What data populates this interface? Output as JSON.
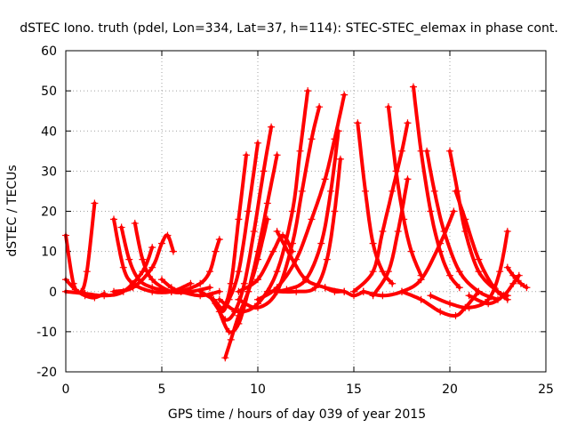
{
  "chart_data": {
    "type": "scatter",
    "title": "dSTEC Iono. truth (pdel, Lon=334, Lat=37, h=114): STEC-STEC_elemax in phase cont.",
    "xlabel": "GPS time / hours of day 039 of year 2015",
    "ylabel": "dSTEC  / TECUs",
    "xlim": [
      0,
      25
    ],
    "ylim": [
      -20,
      60
    ],
    "x_ticks": [
      0,
      5,
      10,
      15,
      20,
      25
    ],
    "y_ticks": [
      -20,
      -10,
      0,
      10,
      20,
      30,
      40,
      50,
      60
    ],
    "grid": true,
    "marker": "+",
    "color": "#ff0000",
    "arcs": [
      {
        "x": [
          0.0,
          0.4,
          0.8,
          1.1,
          1.5
        ],
        "y": [
          14.0,
          2.0,
          0.0,
          5.0,
          22.0
        ]
      },
      {
        "x": [
          0.0,
          0.5,
          1.0,
          1.5,
          2.0
        ],
        "y": [
          3.0,
          0.5,
          -1.0,
          -1.5,
          -0.5
        ]
      },
      {
        "x": [
          0.0,
          1.0,
          2.0,
          3.0,
          4.0,
          4.5
        ],
        "y": [
          0.0,
          -0.5,
          -1.0,
          0.0,
          5.0,
          11.0
        ]
      },
      {
        "x": [
          2.5,
          3.0,
          3.5,
          4.5,
          5.5,
          6.5
        ],
        "y": [
          18.0,
          6.0,
          2.0,
          0.0,
          0.0,
          2.0
        ]
      },
      {
        "x": [
          2.9,
          3.3,
          3.8,
          4.5,
          5.5
        ],
        "y": [
          16.0,
          8.0,
          3.0,
          1.0,
          0.0
        ]
      },
      {
        "x": [
          3.6,
          4.0,
          4.5,
          5.5,
          6.5,
          7.5
        ],
        "y": [
          17.0,
          8.0,
          3.0,
          0.0,
          0.0,
          1.0
        ]
      },
      {
        "x": [
          2.5,
          3.5,
          4.5,
          5.0,
          5.3,
          5.6
        ],
        "y": [
          0.0,
          1.0,
          6.0,
          12.0,
          14.0,
          10.0
        ]
      },
      {
        "x": [
          5.0,
          5.5,
          6.0,
          7.0,
          8.0
        ],
        "y": [
          3.0,
          1.0,
          0.0,
          -1.0,
          0.0
        ]
      },
      {
        "x": [
          6.0,
          7.0,
          7.5,
          7.8,
          8.0
        ],
        "y": [
          0.0,
          2.0,
          5.0,
          10.0,
          13.0
        ]
      },
      {
        "x": [
          7.0,
          7.7,
          8.2,
          8.6,
          9.0,
          9.4
        ],
        "y": [
          0.0,
          -2.0,
          -4.0,
          2.0,
          18.0,
          34.0
        ]
      },
      {
        "x": [
          7.5,
          8.1,
          8.5,
          9.0,
          9.5,
          10.0
        ],
        "y": [
          -1.0,
          -5.0,
          -2.0,
          5.0,
          20.0,
          37.0
        ]
      },
      {
        "x": [
          7.8,
          8.3,
          8.8,
          9.3,
          9.8,
          10.3,
          10.7
        ],
        "y": [
          -3.0,
          -7.0,
          -5.0,
          2.0,
          15.0,
          30.0,
          41.0
        ]
      },
      {
        "x": [
          8.0,
          8.5,
          9.0,
          9.5,
          10.0,
          10.5,
          11.0
        ],
        "y": [
          -5.0,
          -10.0,
          -8.0,
          0.0,
          10.0,
          22.0,
          34.0
        ]
      },
      {
        "x": [
          8.3,
          8.6,
          9.0,
          9.5,
          10.0,
          10.5
        ],
        "y": [
          -16.5,
          -12.0,
          -6.0,
          0.0,
          8.0,
          18.0
        ]
      },
      {
        "x": [
          8.0,
          9.0,
          10.0,
          11.0,
          11.8,
          12.2,
          12.6
        ],
        "y": [
          -2.0,
          -5.0,
          -3.0,
          5.0,
          20.0,
          35.0,
          50.0
        ]
      },
      {
        "x": [
          9.0,
          10.0,
          11.0,
          11.8,
          12.3,
          12.8,
          13.2
        ],
        "y": [
          -2.0,
          -4.0,
          0.0,
          12.0,
          25.0,
          38.0,
          46.0
        ]
      },
      {
        "x": [
          10.0,
          11.0,
          12.0,
          12.8,
          13.5,
          14.0,
          14.5
        ],
        "y": [
          -2.0,
          1.0,
          8.0,
          18.0,
          28.0,
          38.0,
          49.0
        ]
      },
      {
        "x": [
          10.5,
          11.5,
          12.5,
          13.3,
          13.8,
          14.2
        ],
        "y": [
          0.0,
          0.5,
          3.0,
          12.0,
          25.0,
          40.0
        ]
      },
      {
        "x": [
          11.0,
          12.0,
          13.0,
          13.6,
          14.0,
          14.3
        ],
        "y": [
          0.0,
          0.0,
          1.0,
          8.0,
          20.0,
          33.0
        ]
      },
      {
        "x": [
          9.0,
          10.0,
          10.8,
          11.3,
          11.8
        ],
        "y": [
          0.0,
          3.0,
          10.0,
          14.0,
          10.0
        ]
      },
      {
        "x": [
          11.0,
          11.8,
          12.5,
          13.5,
          14.5
        ],
        "y": [
          15.0,
          8.0,
          3.0,
          1.0,
          0.0
        ]
      },
      {
        "x": [
          13.5,
          14.0,
          14.5,
          15.0,
          15.5
        ],
        "y": [
          1.0,
          0.0,
          0.0,
          -1.0,
          0.0
        ]
      },
      {
        "x": [
          15.2,
          15.6,
          16.0,
          16.5,
          17.0
        ],
        "y": [
          42.0,
          25.0,
          12.0,
          5.0,
          2.0
        ]
      },
      {
        "x": [
          16.8,
          17.2,
          17.6,
          18.0,
          18.5
        ],
        "y": [
          46.0,
          30.0,
          18.0,
          10.0,
          4.0
        ]
      },
      {
        "x": [
          18.1,
          18.5,
          19.0,
          19.5,
          20.0,
          20.5
        ],
        "y": [
          51.0,
          35.0,
          20.0,
          10.0,
          4.0,
          1.0
        ]
      },
      {
        "x": [
          18.8,
          19.2,
          19.7,
          20.5,
          21.5,
          22.5
        ],
        "y": [
          35.0,
          25.0,
          15.0,
          5.0,
          0.0,
          -2.0
        ]
      },
      {
        "x": [
          20.0,
          20.4,
          20.8,
          21.5,
          22.5,
          23.0
        ],
        "y": [
          35.0,
          25.0,
          15.0,
          5.0,
          0.0,
          -1.0
        ]
      },
      {
        "x": [
          20.3,
          20.8,
          21.5,
          22.3,
          23.0
        ],
        "y": [
          25.0,
          18.0,
          8.0,
          1.0,
          -2.0
        ]
      },
      {
        "x": [
          15.0,
          16.0,
          16.5,
          17.0,
          17.5,
          17.8
        ],
        "y": [
          0.0,
          5.0,
          15.0,
          25.0,
          35.0,
          42.0
        ]
      },
      {
        "x": [
          16.0,
          16.8,
          17.3,
          17.8
        ],
        "y": [
          -1.0,
          5.0,
          15.0,
          28.0
        ]
      },
      {
        "x": [
          15.5,
          16.5,
          17.5,
          18.5,
          19.5,
          20.2
        ],
        "y": [
          0.0,
          -1.0,
          0.0,
          3.0,
          12.0,
          20.0
        ]
      },
      {
        "x": [
          17.5,
          18.5,
          19.5,
          20.3,
          20.8,
          21.5
        ],
        "y": [
          0.0,
          -2.0,
          -5.0,
          -6.0,
          -4.0,
          0.0
        ]
      },
      {
        "x": [
          19.0,
          20.0,
          21.0,
          22.0,
          22.6,
          23.0
        ],
        "y": [
          -1.0,
          -3.0,
          -4.0,
          -2.0,
          5.0,
          15.0
        ]
      },
      {
        "x": [
          21.0,
          22.0,
          22.8,
          23.3,
          23.6
        ],
        "y": [
          -1.0,
          -3.0,
          -1.0,
          2.0,
          4.0
        ]
      },
      {
        "x": [
          23.0,
          23.3,
          23.7,
          24.0
        ],
        "y": [
          6.0,
          4.0,
          2.0,
          1.0
        ]
      }
    ]
  }
}
